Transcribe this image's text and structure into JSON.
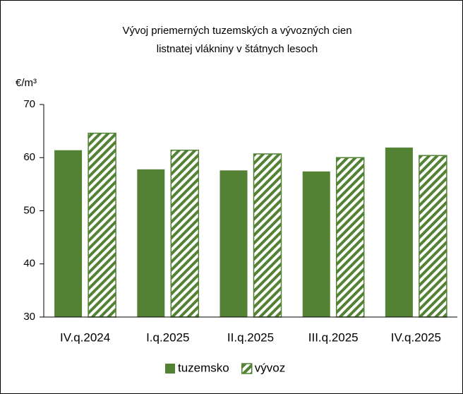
{
  "chart_data": {
    "type": "bar",
    "title": [
      "Vývoj priemerných tuzemských a vývozných cien",
      "listnatej vlákniny v štátnych lesoch"
    ],
    "y_label": "€/m³",
    "categories": [
      "IV.q.2024",
      "I.q.2025",
      "II.q.2025",
      "III.q.2025",
      "IV.q.2025"
    ],
    "series": [
      {
        "name": "tuzemsko",
        "color": "#548235",
        "hatch": false,
        "values": [
          61.4,
          57.8,
          57.6,
          57.4,
          61.9
        ]
      },
      {
        "name": "vývoz",
        "color": "#548235",
        "hatch": true,
        "values": [
          64.6,
          61.4,
          60.7,
          60.0,
          60.4
        ]
      }
    ],
    "ylim": [
      30,
      70
    ],
    "yticks": [
      30,
      40,
      50,
      60,
      70
    ],
    "grid": false,
    "legend": "bottom"
  }
}
